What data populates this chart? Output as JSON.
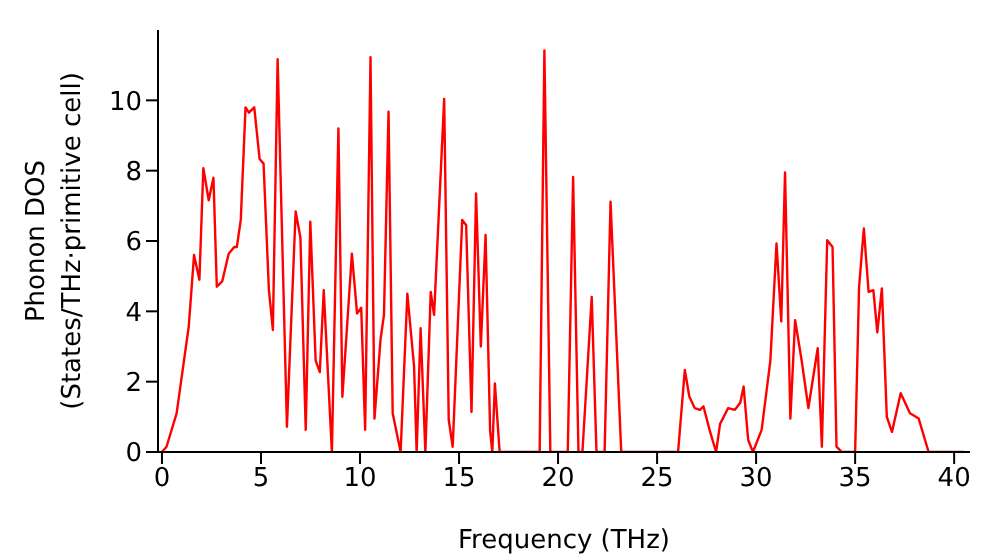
{
  "chart_data": {
    "type": "line",
    "xlabel": "Frequency (THz)",
    "ylabel": "Phonon DOS\n(States/THz·primitive cell)",
    "xlim": [
      -0.2,
      40.8
    ],
    "ylim": [
      0,
      12
    ],
    "xticks": [
      0,
      5,
      10,
      15,
      20,
      25,
      30,
      35,
      40
    ],
    "yticks": [
      0,
      2,
      4,
      6,
      8,
      10
    ],
    "grid": false,
    "legend": false,
    "marker": "none",
    "line_style": "solid",
    "x": [
      0,
      0.23,
      0.74,
      1.35,
      1.62,
      1.89,
      2.09,
      2.36,
      2.6,
      2.77,
      3.04,
      3.37,
      3.65,
      3.78,
      3.98,
      4.22,
      4.39,
      4.66,
      4.93,
      5.13,
      5.4,
      5.6,
      5.84,
      6.31,
      6.75,
      6.99,
      7.26,
      7.49,
      7.76,
      7.97,
      8.17,
      8.58,
      8.91,
      9.11,
      9.59,
      9.85,
      10.06,
      10.26,
      10.53,
      10.73,
      11.04,
      11.21,
      11.44,
      11.65,
      12.05,
      12.39,
      12.73,
      12.86,
      13.06,
      13.3,
      13.57,
      13.74,
      14.25,
      14.48,
      14.68,
      15.16,
      15.36,
      15.63,
      15.86,
      16.1,
      16.34,
      16.57,
      16.68,
      16.81,
      17.05,
      19.07,
      19.31,
      19.61,
      20.49,
      20.76,
      21.03,
      21.23,
      21.7,
      21.94,
      22.35,
      22.65,
      23.19,
      26.06,
      26.4,
      26.63,
      26.9,
      27.17,
      27.34,
      27.65,
      27.98,
      28.18,
      28.59,
      28.93,
      29.2,
      29.37,
      29.6,
      29.84,
      30.28,
      30.72,
      31.03,
      31.27,
      31.46,
      31.73,
      31.97,
      32.3,
      32.64,
      33.11,
      33.32,
      33.59,
      33.86,
      34.06,
      34.33,
      35,
      35.2,
      35.44,
      35.68,
      35.92,
      36.12,
      36.35,
      36.6,
      36.86,
      37.3,
      37.77,
      38.21,
      38.71,
      40.5
    ],
    "series": [
      {
        "color": "#ff0000",
        "values": [
          0,
          0.15,
          1.1,
          3.56,
          5.6,
          4.9,
          8.07,
          7.16,
          7.8,
          4.7,
          4.85,
          5.64,
          5.83,
          5.83,
          6.6,
          9.8,
          9.65,
          9.8,
          8.33,
          8.2,
          4.6,
          3.47,
          11.17,
          0.72,
          6.84,
          6.1,
          0.63,
          6.55,
          2.6,
          2.27,
          4.6,
          0,
          9.2,
          1.57,
          5.64,
          3.94,
          4.1,
          0.63,
          11.23,
          0.95,
          3.22,
          3.9,
          9.68,
          1.1,
          0,
          4.5,
          2.43,
          0,
          3.52,
          0,
          4.55,
          3.9,
          10.04,
          0.91,
          0.15,
          6.6,
          6.45,
          1.14,
          7.35,
          3,
          6.17,
          0.6,
          0,
          1.95,
          0,
          0,
          11.42,
          0,
          0,
          7.82,
          0,
          0,
          4.41,
          0,
          0,
          7.12,
          0,
          0,
          2.33,
          1.57,
          1.25,
          1.2,
          1.3,
          0.63,
          0,
          0.8,
          1.25,
          1.2,
          1.4,
          1.86,
          0.34,
          0,
          0.63,
          2.6,
          5.93,
          3.71,
          7.95,
          0.95,
          3.75,
          2.6,
          1.25,
          2.95,
          0.15,
          6.02,
          5.83,
          0.15,
          0,
          0,
          4.7,
          6.36,
          4.55,
          4.6,
          3.4,
          4.65,
          1,
          0.57,
          1.67,
          1.1,
          0.95,
          0,
          0
        ]
      }
    ]
  }
}
